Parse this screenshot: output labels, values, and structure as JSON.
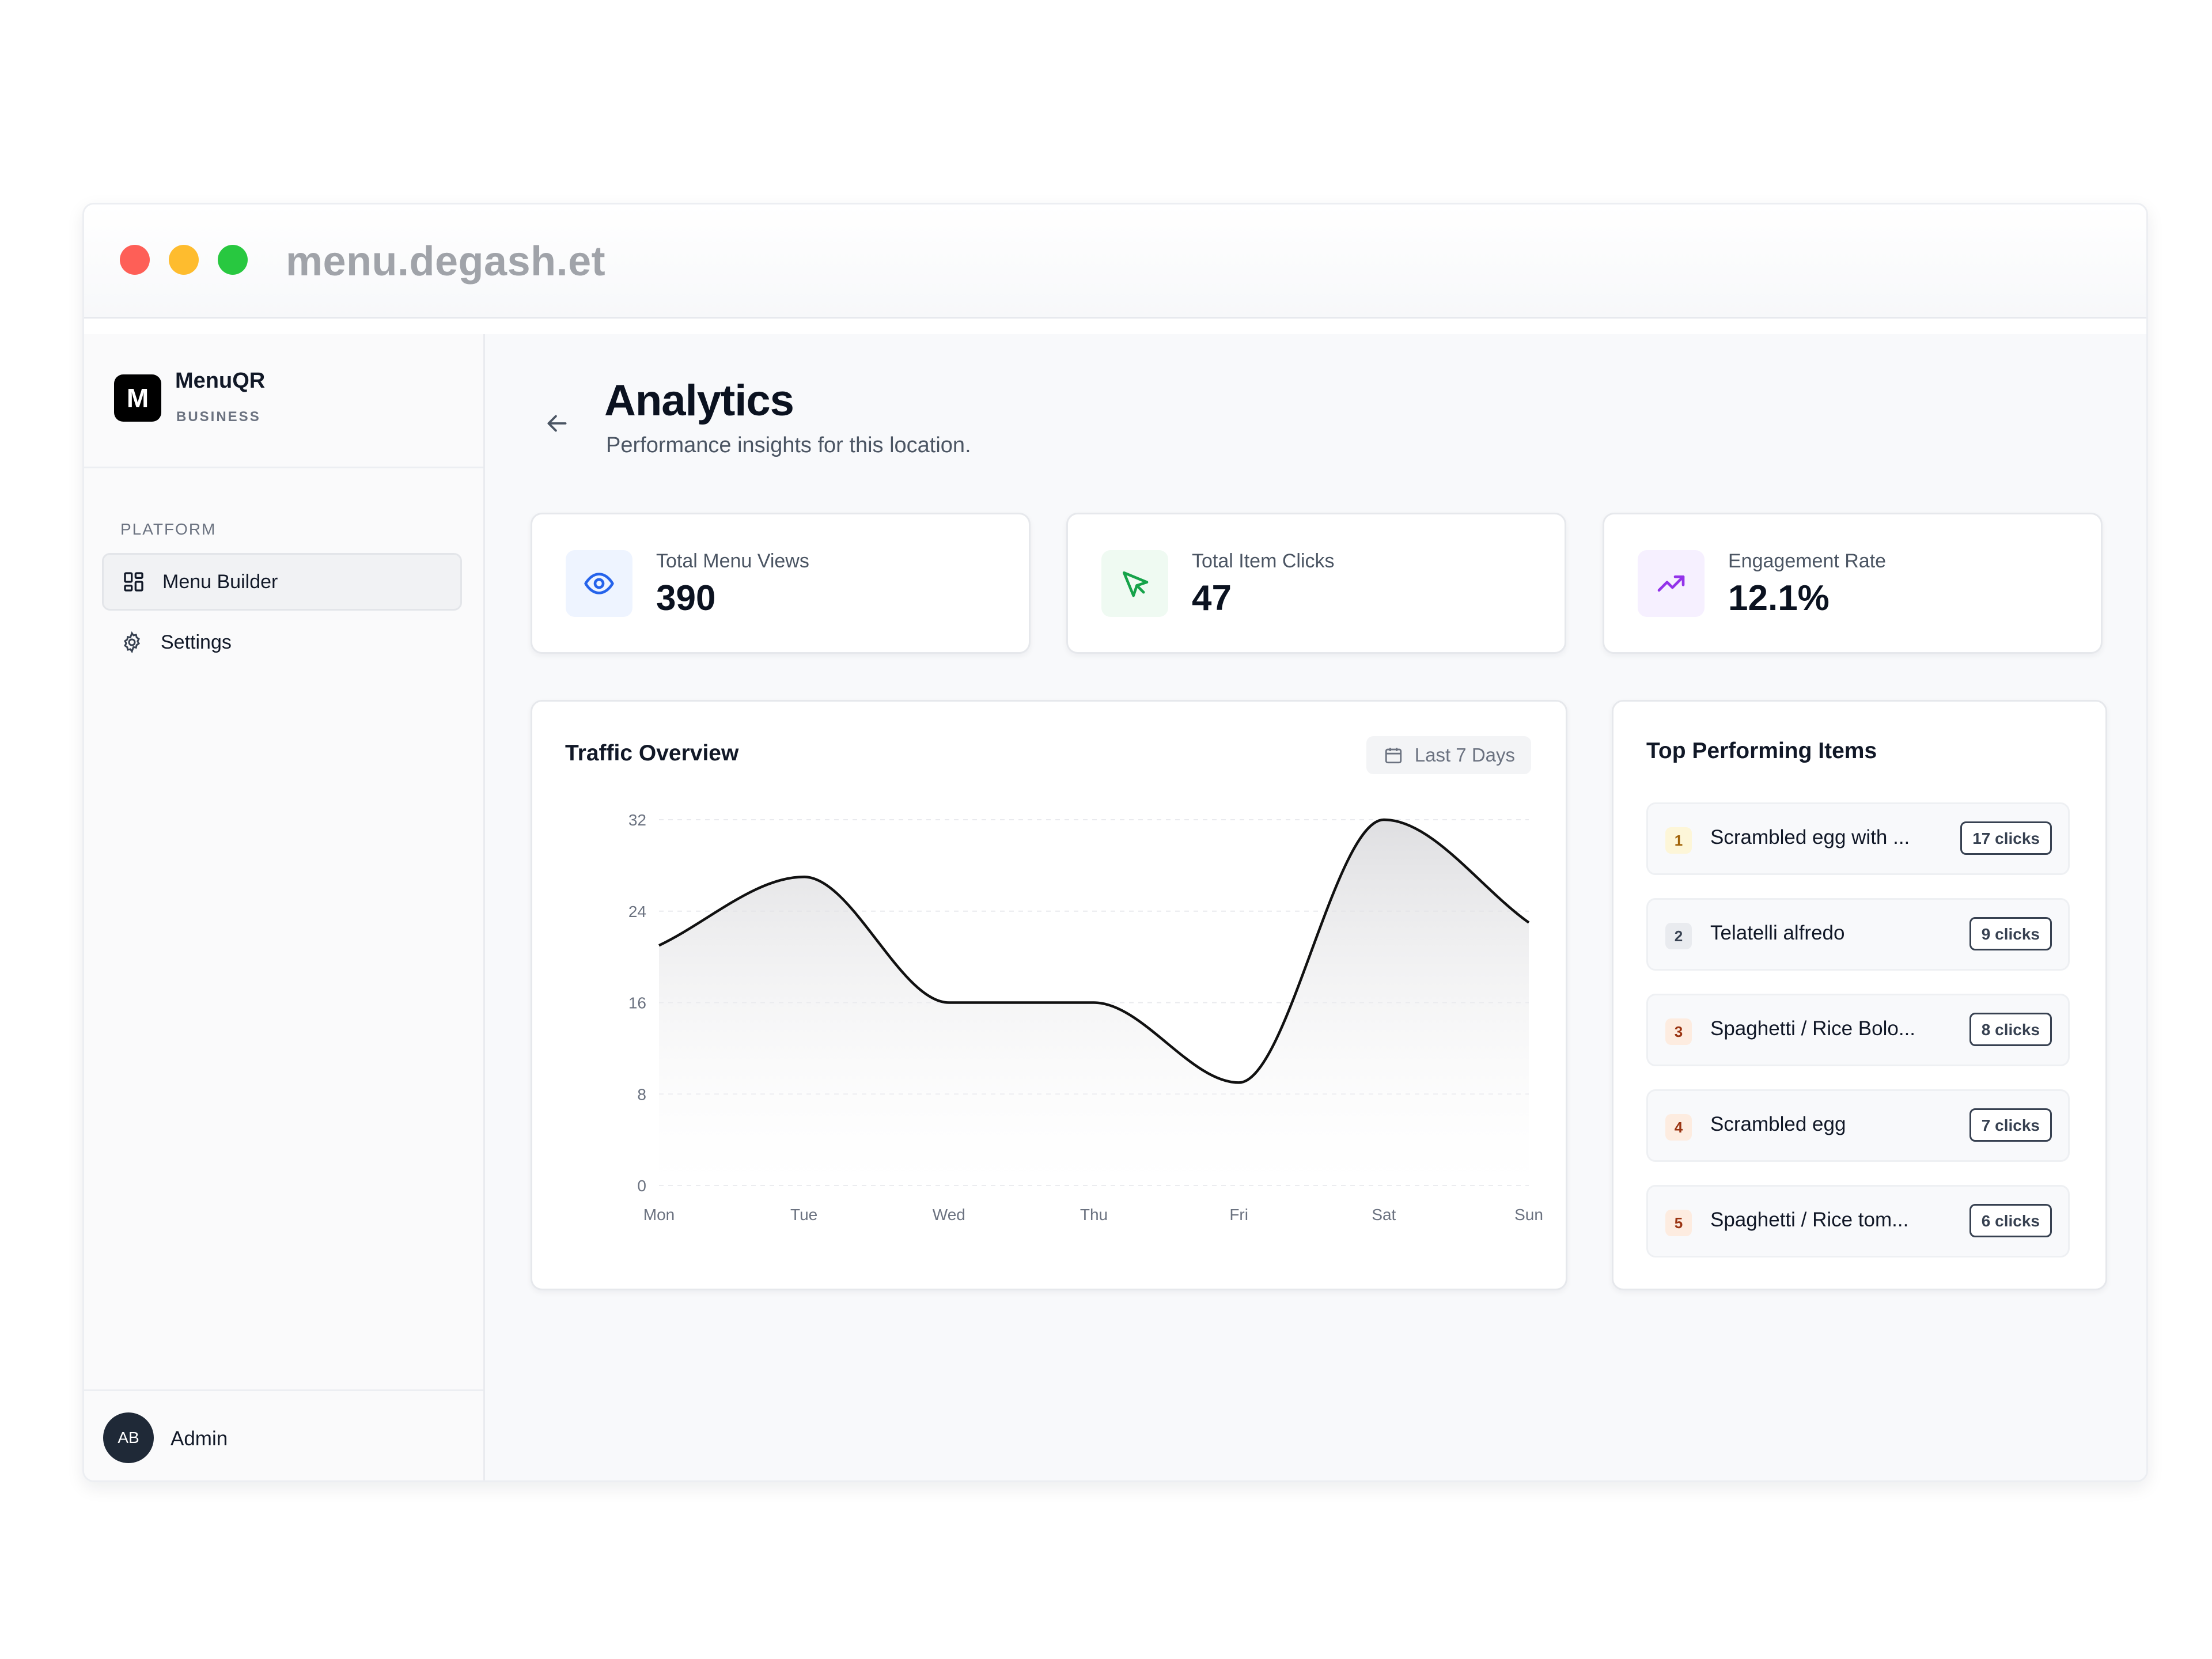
{
  "browser": {
    "url": "menu.degash.et"
  },
  "sidebar": {
    "logo_letter": "M",
    "brand_name": "MenuQR",
    "brand_sub": "BUSINESS",
    "section_label": "PLATFORM",
    "items": [
      {
        "label": "Menu Builder",
        "icon": "grid-icon",
        "active": true
      },
      {
        "label": "Settings",
        "icon": "gear-icon",
        "active": false
      }
    ],
    "user": {
      "initials": "AB",
      "name": "Admin"
    }
  },
  "header": {
    "title": "Analytics",
    "subtitle": "Performance insights for this location."
  },
  "stats": [
    {
      "label": "Total Menu Views",
      "value": "390",
      "icon": "eye-icon",
      "color": "#2563eb",
      "bg": "#eef4ff"
    },
    {
      "label": "Total Item Clicks",
      "value": "47",
      "icon": "cursor-icon",
      "color": "#16a34a",
      "bg": "#effaf2"
    },
    {
      "label": "Engagement Rate",
      "value": "12.1%",
      "icon": "trending-up-icon",
      "color": "#9333ea",
      "bg": "#f6f0ff"
    }
  ],
  "traffic": {
    "title": "Traffic Overview",
    "range_label": "Last 7 Days"
  },
  "chart_data": {
    "type": "area",
    "categories": [
      "Mon",
      "Tue",
      "Wed",
      "Thu",
      "Fri",
      "Sat",
      "Sun"
    ],
    "series": [
      {
        "values": [
          21,
          27,
          16,
          16,
          9,
          32,
          23
        ]
      }
    ],
    "ylim": [
      0,
      32
    ],
    "yticks": [
      0,
      8,
      16,
      24,
      32
    ],
    "grid": true,
    "line_color": "#111111"
  },
  "top_items": {
    "title": "Top Performing Items",
    "items": [
      {
        "rank": "1",
        "name": "Scrambled egg with ...",
        "clicks": "17 clicks",
        "rank_bg": "#fdf6d8",
        "rank_color": "#a16207"
      },
      {
        "rank": "2",
        "name": "Telatelli alfredo",
        "clicks": "9 clicks",
        "rank_bg": "#e9ebef",
        "rank_color": "#374151"
      },
      {
        "rank": "3",
        "name": "Spaghetti / Rice Bolo...",
        "clicks": "8 clicks",
        "rank_bg": "#fdece0",
        "rank_color": "#9a3412"
      },
      {
        "rank": "4",
        "name": "Scrambled egg",
        "clicks": "7 clicks",
        "rank_bg": "#fdece0",
        "rank_color": "#9a3412"
      },
      {
        "rank": "5",
        "name": "Spaghetti / Rice tom...",
        "clicks": "6 clicks",
        "rank_bg": "#fdece0",
        "rank_color": "#9a3412"
      }
    ]
  }
}
